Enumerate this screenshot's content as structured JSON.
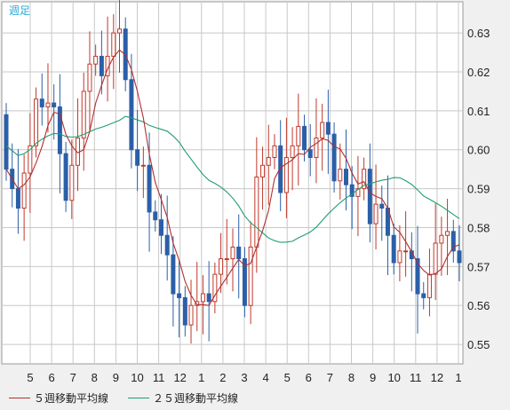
{
  "chart_data": {
    "type": "candlestick",
    "title": "週足",
    "y_ticks": [
      "0.63",
      "0.62",
      "0.61",
      "0.60",
      "0.59",
      "0.58",
      "0.57",
      "0.56",
      "0.55"
    ],
    "ylim": [
      0.545,
      0.638
    ],
    "x_ticks": [
      "5",
      "6",
      "7",
      "8",
      "9",
      "10",
      "11",
      "12",
      "1",
      "2",
      "3",
      "4",
      "5",
      "6",
      "7",
      "8",
      "9",
      "10",
      "11",
      "12",
      "1"
    ],
    "grid": true,
    "colors": {
      "up": "#c0392b",
      "down": "#2b5fa8",
      "ma5": "#b03030",
      "ma25": "#1f9e6e",
      "title": "#2aa8d8"
    },
    "series": [
      {
        "name": "５週移動平均線",
        "color": "#b03030"
      },
      {
        "name": "２５週移動平均線",
        "color": "#1f9e6e"
      }
    ],
    "close": [
      0.595,
      0.59,
      0.585,
      0.594,
      0.601,
      0.613,
      0.611,
      0.612,
      0.611,
      0.599,
      0.587,
      0.596,
      0.603,
      0.615,
      0.622,
      0.624,
      0.619,
      0.624,
      0.63,
      0.631,
      0.618,
      0.6,
      0.596,
      0.596,
      0.584,
      0.582,
      0.578,
      0.573,
      0.563,
      0.562,
      0.555,
      0.56,
      0.561,
      0.563,
      0.561,
      0.568,
      0.572,
      0.572,
      0.575,
      0.572,
      0.56,
      0.575,
      0.593,
      0.596,
      0.598,
      0.601,
      0.589,
      0.598,
      0.601,
      0.606,
      0.6,
      0.598,
      0.603,
      0.607,
      0.604,
      0.592,
      0.595,
      0.591,
      0.588,
      0.59,
      0.595,
      0.581,
      0.586,
      0.585,
      0.578,
      0.571,
      0.574,
      0.574,
      0.572,
      0.563,
      0.562,
      0.568,
      0.576,
      0.578,
      0.579,
      0.574,
      0.571
    ]
  }
}
